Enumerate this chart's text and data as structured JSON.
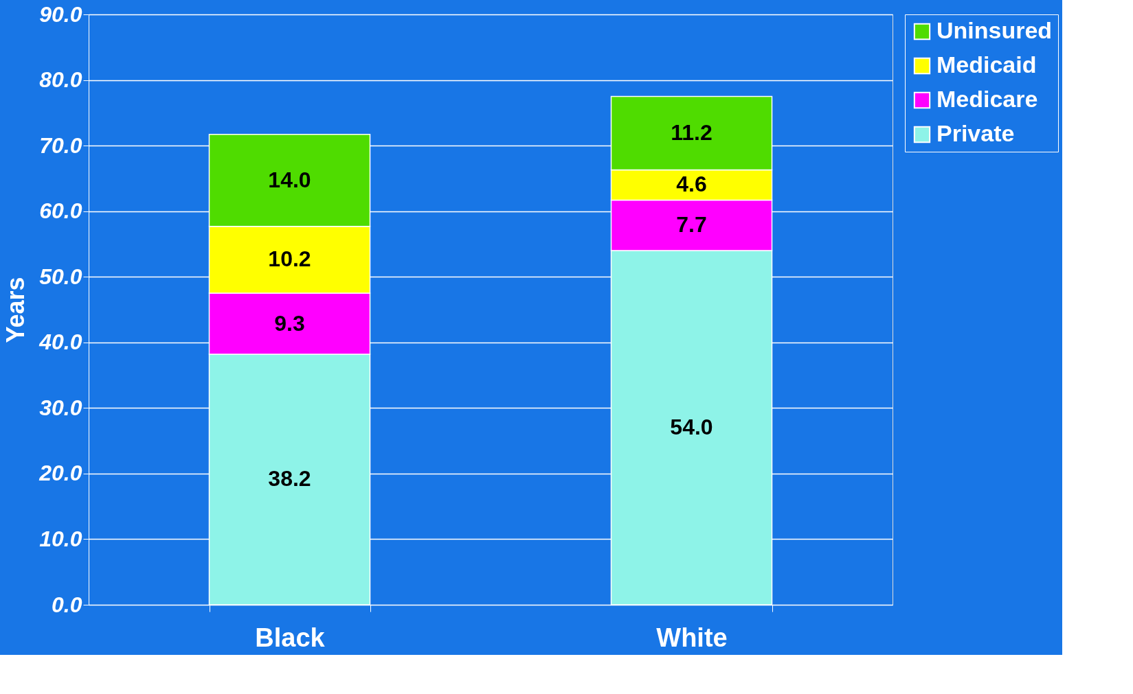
{
  "chart_data": {
    "type": "bar",
    "stacked": true,
    "ylabel": "Years",
    "categories": [
      "Black",
      "White"
    ],
    "series": [
      {
        "name": "Private",
        "color": "#8ef3e8",
        "values": [
          38.2,
          54.0
        ],
        "value_labels": [
          "38.2",
          "54.0"
        ]
      },
      {
        "name": "Medicare",
        "color": "#ff00ff",
        "values": [
          9.3,
          7.7
        ],
        "value_labels": [
          "9.3",
          "7.7"
        ]
      },
      {
        "name": "Medicaid",
        "color": "#ffff00",
        "values": [
          10.2,
          4.6
        ],
        "value_labels": [
          "10.2",
          "4.6"
        ]
      },
      {
        "name": "Uninsured",
        "color": "#4fdc00",
        "values": [
          14.0,
          11.2
        ],
        "value_labels": [
          "14.0",
          "11.2"
        ]
      }
    ],
    "ylim": [
      0,
      90
    ],
    "yticks": [
      {
        "value": 0,
        "label": "0.0"
      },
      {
        "value": 10,
        "label": "10.0"
      },
      {
        "value": 20,
        "label": "20.0"
      },
      {
        "value": 30,
        "label": "30.0"
      },
      {
        "value": 40,
        "label": "40.0"
      },
      {
        "value": 50,
        "label": "50.0"
      },
      {
        "value": 60,
        "label": "60.0"
      },
      {
        "value": 70,
        "label": "70.0"
      },
      {
        "value": 80,
        "label": "80.0"
      },
      {
        "value": 90,
        "label": "90.0"
      }
    ],
    "grid": "y",
    "legend": "right"
  }
}
